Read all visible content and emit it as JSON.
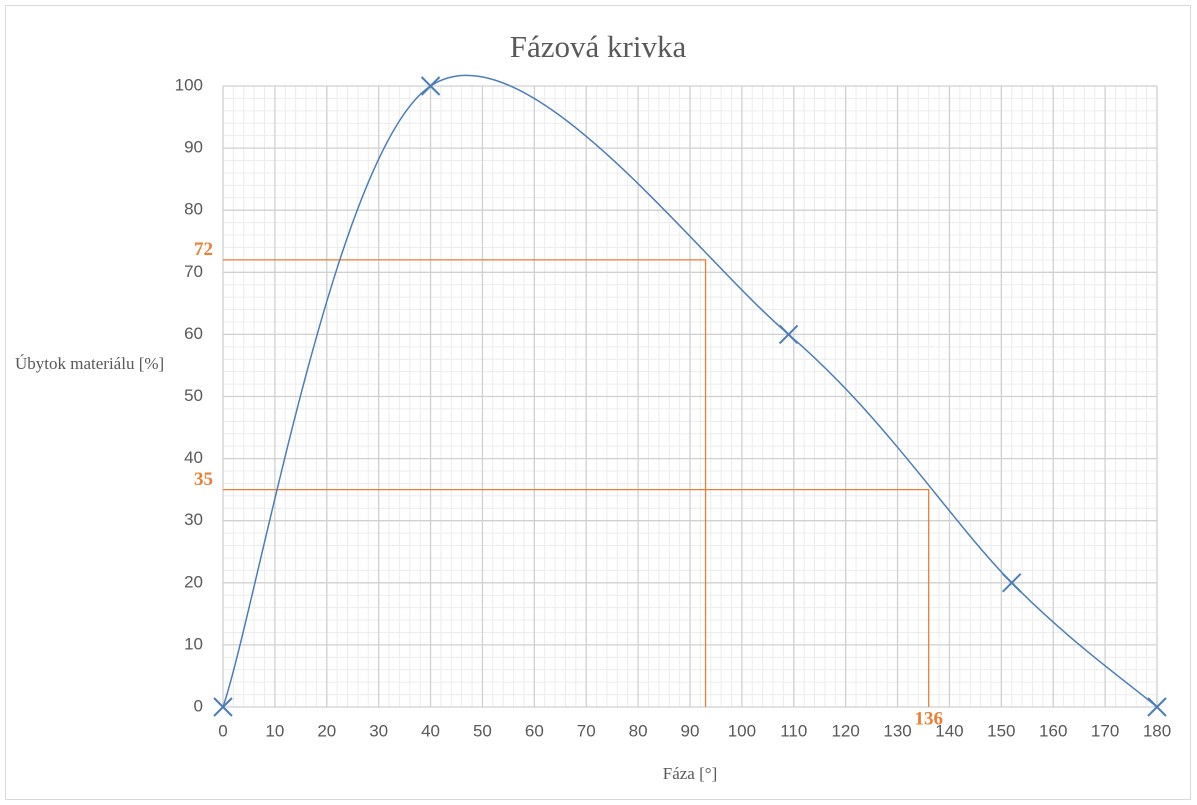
{
  "chart_data": {
    "type": "line",
    "title": "Fázová krivka",
    "x_label": "Fáza [°]",
    "y_label": "Úbytok materiálu [%]",
    "series": [
      {
        "x": [
          0,
          40,
          109,
          152,
          180
        ],
        "values": [
          0,
          100,
          60,
          20,
          0
        ],
        "color": "#4a7ebb"
      }
    ],
    "smooth": true,
    "grid": true,
    "xlim": [
      0,
      180
    ],
    "xticks": [
      0,
      10,
      20,
      30,
      40,
      50,
      60,
      70,
      80,
      90,
      100,
      110,
      120,
      130,
      140,
      150,
      160,
      170,
      180
    ],
    "ylim": [
      0,
      100
    ],
    "yticks": [
      0,
      10,
      20,
      30,
      40,
      50,
      60,
      70,
      80,
      90,
      100
    ],
    "guides": [
      {
        "x": 93,
        "y": 72
      },
      {
        "x": 136,
        "y": 35
      }
    ],
    "guide_color": "#ed7d31"
  }
}
